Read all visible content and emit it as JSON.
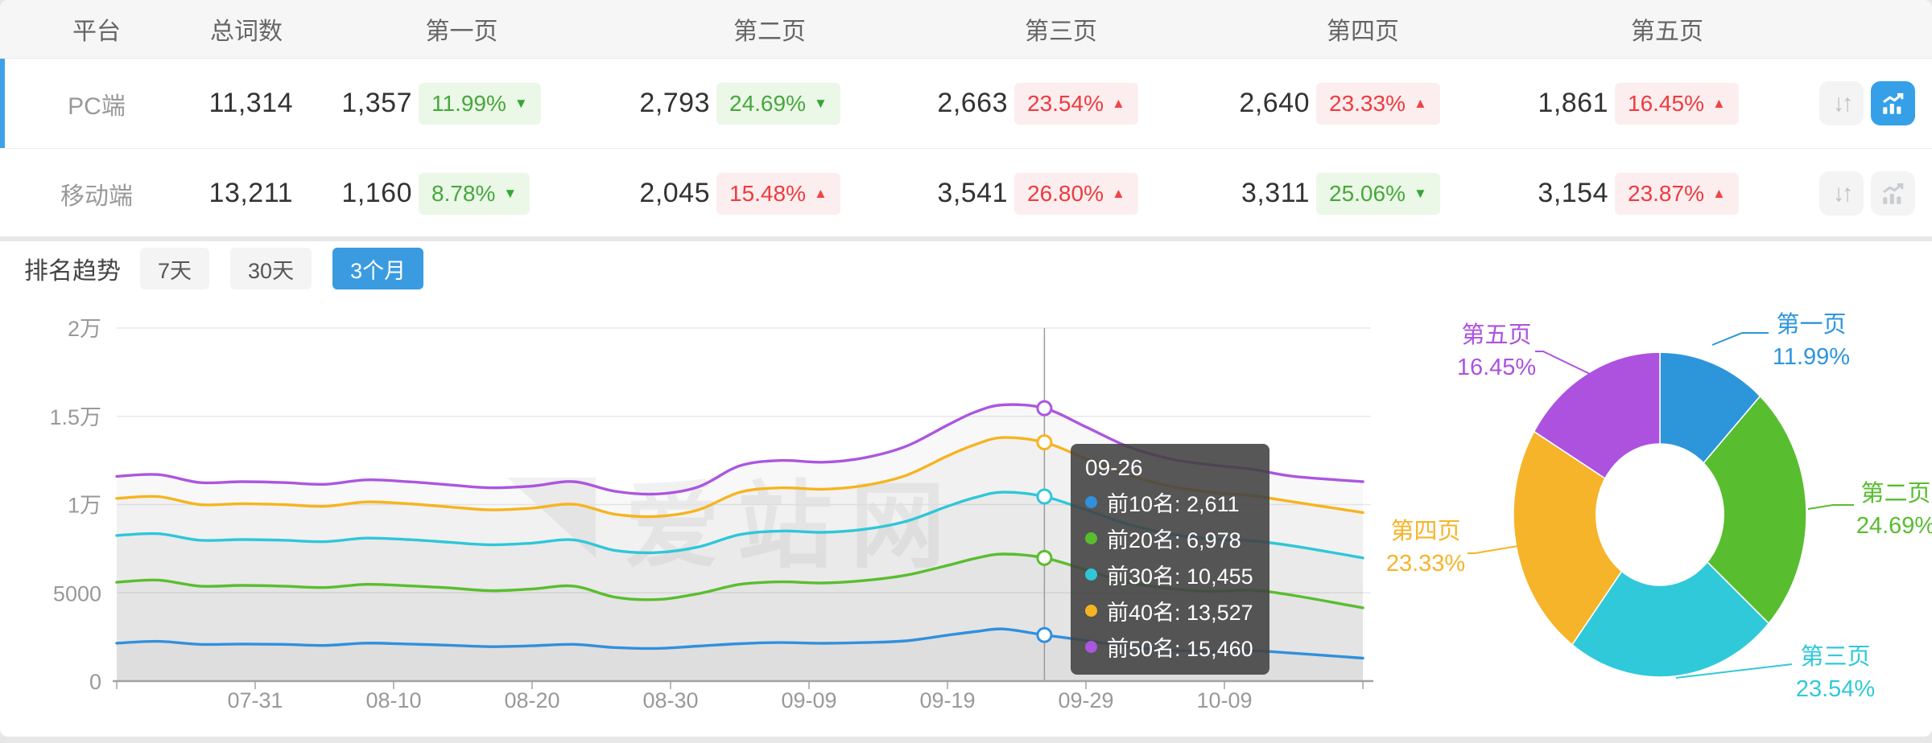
{
  "colors": {
    "accent_blue": "#3A9BE0",
    "row_accent": "#3FA2E6",
    "up_red": "#EE3B40",
    "up_bg": "#FCEEEE",
    "down_green": "#47A83C",
    "down_bg": "#EBF7E7",
    "axis": "#999999",
    "grid": "#E9E9E9",
    "tooltip_bg": "#424242"
  },
  "table": {
    "headers": {
      "platform": "平台",
      "total": "总词数",
      "p1": "第一页",
      "p2": "第二页",
      "p3": "第三页",
      "p4": "第四页",
      "p5": "第五页"
    },
    "rows": [
      {
        "platform": "PC端",
        "selected": true,
        "total": "11,314",
        "pages": [
          {
            "value": "1,357",
            "pct": "11.99%",
            "dir": "down"
          },
          {
            "value": "2,793",
            "pct": "24.69%",
            "dir": "down"
          },
          {
            "value": "2,663",
            "pct": "23.54%",
            "dir": "up"
          },
          {
            "value": "2,640",
            "pct": "23.33%",
            "dir": "up"
          },
          {
            "value": "1,861",
            "pct": "16.45%",
            "dir": "up"
          }
        ],
        "actions": {
          "chart_active": true
        }
      },
      {
        "platform": "移动端",
        "selected": false,
        "total": "13,211",
        "pages": [
          {
            "value": "1,160",
            "pct": "8.78%",
            "dir": "down"
          },
          {
            "value": "2,045",
            "pct": "15.48%",
            "dir": "up"
          },
          {
            "value": "3,541",
            "pct": "26.80%",
            "dir": "up"
          },
          {
            "value": "3,311",
            "pct": "25.06%",
            "dir": "down"
          },
          {
            "value": "3,154",
            "pct": "23.87%",
            "dir": "up"
          }
        ],
        "actions": {
          "chart_active": false
        }
      }
    ]
  },
  "trend": {
    "title": "排名趋势",
    "tabs": [
      {
        "label": "7天",
        "active": false
      },
      {
        "label": "30天",
        "active": false
      },
      {
        "label": "3个月",
        "active": true
      }
    ]
  },
  "watermark": {
    "text": "爱站网"
  },
  "chart_data": {
    "type": "line",
    "title": "排名趋势",
    "ylim": [
      0,
      20000
    ],
    "grid": true,
    "legend_position": "none",
    "x_dates": [
      "07-21",
      "07-24",
      "07-27",
      "07-30",
      "08-02",
      "08-05",
      "08-08",
      "08-11",
      "08-14",
      "08-17",
      "08-20",
      "08-23",
      "08-26",
      "08-29",
      "09-01",
      "09-04",
      "09-07",
      "09-10",
      "09-13",
      "09-16",
      "09-19",
      "09-21",
      "09-23",
      "09-26",
      "09-29",
      "10-02",
      "10-05",
      "10-08",
      "10-11",
      "10-14",
      "10-19"
    ],
    "day_offsets": [
      0,
      3,
      6,
      9,
      12,
      15,
      18,
      21,
      24,
      27,
      30,
      33,
      36,
      39,
      42,
      45,
      48,
      51,
      54,
      57,
      60,
      62,
      64,
      67,
      70,
      73,
      76,
      79,
      82,
      85,
      90
    ],
    "series": [
      {
        "name": "前10名",
        "color": "#3190DC",
        "values": [
          2150,
          2250,
          2080,
          2100,
          2080,
          2020,
          2150,
          2100,
          2030,
          1950,
          2000,
          2080,
          1900,
          1850,
          1980,
          2120,
          2180,
          2140,
          2180,
          2280,
          2600,
          2800,
          2950,
          2611,
          2300,
          1950,
          1750,
          1680,
          1720,
          1580,
          1300
        ]
      },
      {
        "name": "前20名",
        "color": "#5ABD2F",
        "values": [
          5600,
          5720,
          5380,
          5420,
          5380,
          5300,
          5480,
          5400,
          5280,
          5120,
          5220,
          5380,
          4750,
          4620,
          4950,
          5480,
          5620,
          5560,
          5700,
          6000,
          6550,
          6950,
          7200,
          6978,
          6300,
          5600,
          5250,
          5080,
          5150,
          4850,
          4150
        ]
      },
      {
        "name": "前30名",
        "color": "#2EC7D8",
        "values": [
          8250,
          8350,
          7980,
          8020,
          7980,
          7900,
          8100,
          8020,
          7870,
          7720,
          7820,
          8000,
          7400,
          7280,
          7600,
          8300,
          8500,
          8430,
          8600,
          9050,
          9900,
          10400,
          10700,
          10455,
          9700,
          8900,
          8350,
          8050,
          7950,
          7650,
          6980
        ]
      },
      {
        "name": "前40名",
        "color": "#F6B41F",
        "values": [
          10350,
          10450,
          10000,
          10050,
          10000,
          9900,
          10150,
          10050,
          9870,
          9700,
          9800,
          10020,
          9450,
          9330,
          9700,
          10700,
          10950,
          10870,
          11080,
          11650,
          12750,
          13400,
          13800,
          13527,
          12600,
          11700,
          11050,
          10700,
          10500,
          10150,
          9550
        ]
      },
      {
        "name": "前50名",
        "color": "#AC56DF",
        "values": [
          11600,
          11700,
          11250,
          11300,
          11250,
          11150,
          11400,
          11300,
          11120,
          10950,
          11050,
          11300,
          10750,
          10600,
          11000,
          12200,
          12500,
          12400,
          12650,
          13300,
          14500,
          15250,
          15650,
          15460,
          14400,
          13300,
          12600,
          12250,
          12000,
          11600,
          11300
        ]
      }
    ],
    "yticks": [
      {
        "label": "0",
        "value": 0
      },
      {
        "label": "5000",
        "value": 5000
      },
      {
        "label": "1万",
        "value": 10000
      },
      {
        "label": "1.5万",
        "value": 15000
      },
      {
        "label": "2万",
        "value": 20000
      }
    ],
    "xticks": [
      {
        "label": "07-31",
        "day": 10
      },
      {
        "label": "08-10",
        "day": 20
      },
      {
        "label": "08-20",
        "day": 30
      },
      {
        "label": "08-30",
        "day": 40
      },
      {
        "label": "09-09",
        "day": 50
      },
      {
        "label": "09-19",
        "day": 60
      },
      {
        "label": "09-29",
        "day": 70
      },
      {
        "label": "10-09",
        "day": 80
      }
    ]
  },
  "tooltip": {
    "date": "09-26",
    "hover_day": 67,
    "rows": [
      {
        "text": "前10名: 2,611",
        "color": "#3190DC"
      },
      {
        "text": "前20名: 6,978",
        "color": "#5ABD2F"
      },
      {
        "text": "前30名: 10,455",
        "color": "#2EC7D8"
      },
      {
        "text": "前40名: 13,527",
        "color": "#F6B41F"
      },
      {
        "text": "前50名: 15,460",
        "color": "#AC56DF"
      }
    ]
  },
  "donut": {
    "type": "pie",
    "slices": [
      {
        "label": "第一页",
        "pct": "11.99%",
        "value": 11.99,
        "color": "#2D96DB"
      },
      {
        "label": "第二页",
        "pct": "24.69%",
        "value": 24.69,
        "color": "#58BD2F"
      },
      {
        "label": "第三页",
        "pct": "23.54%",
        "value": 23.54,
        "color": "#30C9DA"
      },
      {
        "label": "第四页",
        "pct": "23.33%",
        "value": 23.33,
        "color": "#F6B42A"
      },
      {
        "label": "第五页",
        "pct": "16.45%",
        "value": 16.45,
        "color": "#AD52DE"
      }
    ]
  }
}
